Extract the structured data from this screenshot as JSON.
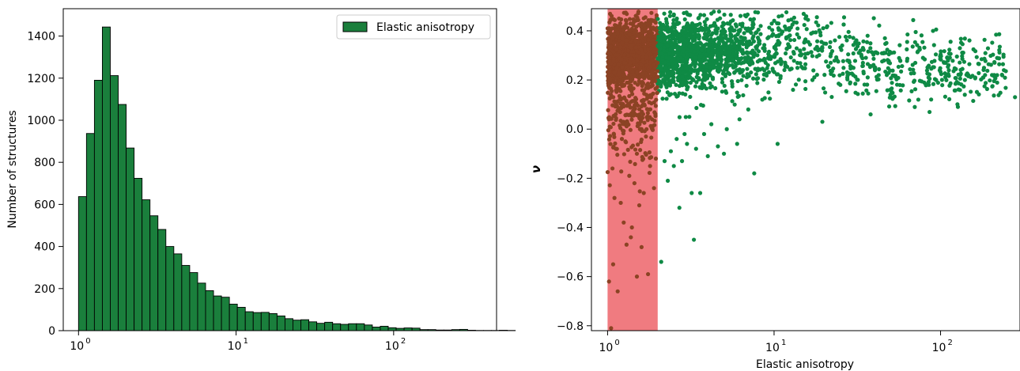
{
  "colors": {
    "bar_fill": "#1a7f3c",
    "bar_edge": "#000000",
    "point": "#0f8a45",
    "point_in_band": "#8b4324",
    "band": "#f07b80"
  },
  "chart_data": [
    {
      "type": "bar",
      "xlabel": "",
      "ylabel": "Number of structures",
      "x_scale": "log",
      "xlim": [
        0.8,
        450
      ],
      "ylim": [
        0,
        1530
      ],
      "xticks": [
        1,
        10,
        100
      ],
      "xtick_labels": [
        "10",
        "10",
        "10"
      ],
      "xtick_exponents": [
        "0",
        "1",
        "2"
      ],
      "yticks": [
        0,
        200,
        400,
        600,
        800,
        1000,
        1200,
        1400
      ],
      "ytick_labels": [
        "0",
        "200",
        "400",
        "600",
        "800",
        "1000",
        "1200",
        "1400"
      ],
      "legend": {
        "entries": [
          "Elastic anisotropy"
        ],
        "placement": "top-right"
      },
      "bins_start": 1.0,
      "bin_width_log10": 0.0504,
      "values": [
        637,
        937,
        1190,
        1443,
        1212,
        1075,
        868,
        724,
        622,
        546,
        481,
        400,
        365,
        310,
        276,
        226,
        190,
        165,
        159,
        126,
        111,
        90,
        86,
        87,
        81,
        70,
        57,
        50,
        52,
        42,
        35,
        40,
        33,
        30,
        33,
        33,
        27,
        17,
        21,
        14,
        11,
        13,
        12,
        5,
        5,
        3,
        3,
        5,
        6,
        2,
        1,
        1,
        1,
        2,
        1
      ]
    },
    {
      "type": "scatter",
      "xlabel": "Elastic anisotropy",
      "ylabel": "ν",
      "x_scale": "log",
      "xlim": [
        0.8,
        300
      ],
      "ylim": [
        -0.82,
        0.49
      ],
      "xticks": [
        1,
        10,
        100
      ],
      "xtick_labels": [
        "10",
        "10",
        "10"
      ],
      "xtick_exponents": [
        "0",
        "1",
        "2"
      ],
      "yticks": [
        -0.8,
        -0.6,
        -0.4,
        -0.2,
        0.0,
        0.2,
        0.4
      ],
      "ytick_labels": [
        "−0.8",
        "−0.6",
        "−0.4",
        "−0.2",
        "0.0",
        "0.2",
        "0.4"
      ],
      "highlight_band_x": [
        1.0,
        2.0
      ],
      "points": [
        [
          2.1,
          -0.54
        ],
        [
          3.3,
          -0.45
        ],
        [
          3.2,
          -0.26
        ],
        [
          3.6,
          -0.26
        ],
        [
          2.7,
          -0.32
        ],
        [
          7.6,
          -0.18
        ],
        [
          10.5,
          -0.06
        ],
        [
          19.5,
          0.03
        ],
        [
          38,
          0.06
        ],
        [
          70,
          0.09
        ],
        [
          5.0,
          -0.1
        ],
        [
          4.6,
          -0.07
        ],
        [
          2.5,
          -0.15
        ],
        [
          2.2,
          -0.13
        ],
        [
          2.8,
          -0.13
        ],
        [
          3.0,
          -0.06
        ],
        [
          3.8,
          -0.02
        ],
        [
          5.2,
          0.0
        ],
        [
          6.2,
          0.04
        ],
        [
          4.0,
          -0.11
        ],
        [
          2.3,
          -0.21
        ],
        [
          2.6,
          -0.04
        ],
        [
          3.4,
          -0.08
        ],
        [
          2.9,
          -0.02
        ],
        [
          4.2,
          0.02
        ],
        [
          6.0,
          -0.06
        ],
        [
          2.4,
          -0.09
        ],
        [
          3.1,
          0.05
        ],
        [
          5.8,
          0.1
        ],
        [
          7.0,
          0.08
        ],
        [
          8.5,
          0.12
        ],
        [
          13,
          0.16
        ],
        [
          17,
          0.2
        ],
        [
          25,
          0.18
        ],
        [
          50,
          0.14
        ],
        [
          85,
          0.18
        ],
        [
          140,
          0.2
        ],
        [
          180,
          0.21
        ],
        [
          240,
          0.24
        ],
        [
          280,
          0.13
        ],
        [
          1.05,
          -0.81
        ],
        [
          1.02,
          -0.62
        ],
        [
          1.08,
          -0.55
        ],
        [
          1.15,
          -0.66
        ],
        [
          1.3,
          -0.47
        ],
        [
          1.38,
          -0.44
        ],
        [
          1.5,
          -0.6
        ],
        [
          1.75,
          -0.59
        ],
        [
          1.6,
          -0.48
        ],
        [
          1.25,
          -0.38
        ],
        [
          1.4,
          -0.4
        ],
        [
          1.1,
          -0.28
        ],
        [
          1.2,
          -0.3
        ],
        [
          1.55,
          -0.31
        ],
        [
          1.9,
          -0.24
        ],
        [
          1.45,
          -0.22
        ],
        [
          1.65,
          -0.26
        ],
        [
          1.07,
          -0.16
        ],
        [
          1.35,
          -0.19
        ],
        [
          1.8,
          -0.15
        ],
        [
          1.12,
          -0.08
        ],
        [
          1.5,
          -0.1
        ],
        [
          1.95,
          -0.12
        ],
        [
          1.28,
          -0.05
        ],
        [
          1.7,
          -0.03
        ],
        [
          1.03,
          0.01
        ],
        [
          1.6,
          0.0
        ],
        [
          1.22,
          0.03
        ],
        [
          1.85,
          0.04
        ],
        [
          1.42,
          0.06
        ]
      ]
    }
  ]
}
